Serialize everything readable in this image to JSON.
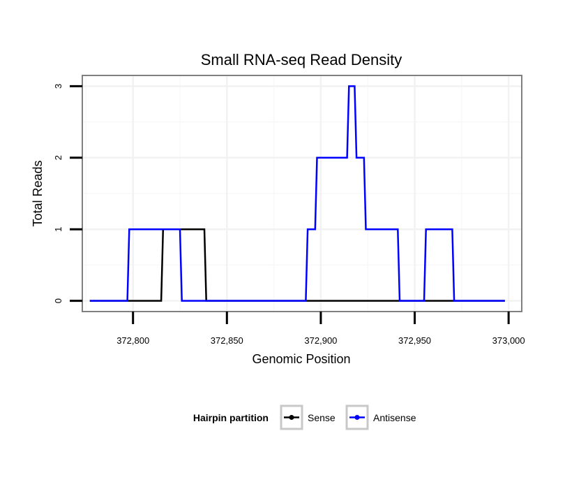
{
  "chart_data": {
    "type": "line",
    "title": "Small RNA-seq Read Density",
    "xlabel": "Genomic Position",
    "ylabel": "Total Reads",
    "xlim": [
      372773,
      373007
    ],
    "ylim": [
      -0.15,
      3.15
    ],
    "x_ticks": [
      372800,
      372850,
      372900,
      372950,
      373000
    ],
    "x_tick_labels": [
      "372,800",
      "372,850",
      "372,900",
      "372,950",
      "373,000"
    ],
    "y_ticks": [
      0,
      1,
      2,
      3
    ],
    "y_tick_labels": [
      "0",
      "1",
      "2",
      "3"
    ],
    "grid": true,
    "legend": {
      "title": "Hairpin partition",
      "position": "bottom",
      "entries": [
        "Sense",
        "Antisense"
      ]
    },
    "series": [
      {
        "name": "Sense",
        "color": "#000000",
        "x": [
          372777,
          372815,
          372816,
          372838,
          372839,
          372998
        ],
        "y": [
          0,
          0,
          1,
          1,
          0,
          0
        ]
      },
      {
        "name": "Antisense",
        "color": "#0000ff",
        "x": [
          372777,
          372797,
          372798,
          372825,
          372826,
          372892,
          372893,
          372897,
          372898,
          372914,
          372915,
          372918,
          372919,
          372923,
          372924,
          372941,
          372942,
          372955,
          372956,
          372970,
          372971,
          372998
        ],
        "y": [
          0,
          0,
          1,
          1,
          0,
          0,
          1,
          1,
          2,
          2,
          3,
          3,
          2,
          2,
          1,
          1,
          0,
          0,
          1,
          1,
          0,
          0
        ]
      }
    ]
  }
}
